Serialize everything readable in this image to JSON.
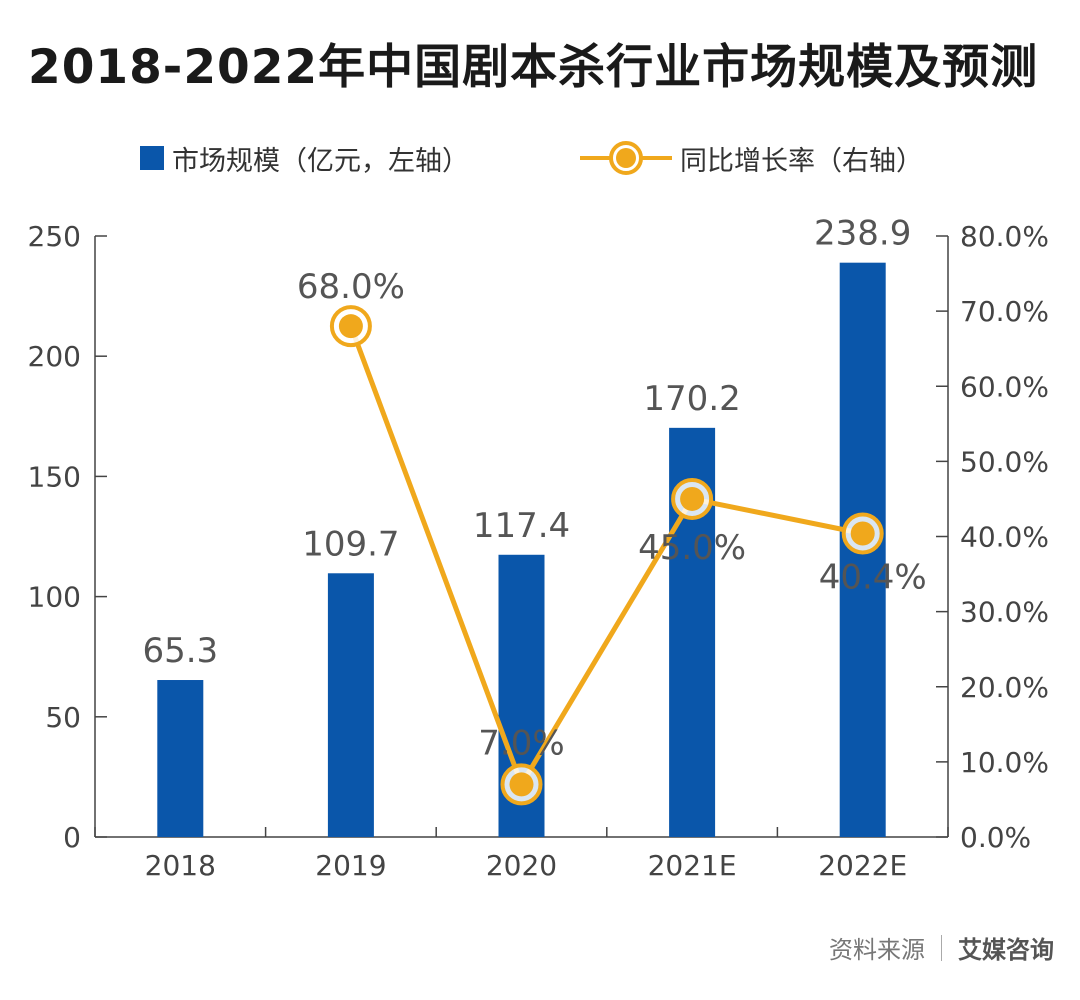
{
  "colors": {
    "bar": "#0a56aa",
    "line": "#f0a81c",
    "marker_fill": "#f0a81c",
    "marker_ring": "#f0a81c",
    "axis": "#444444"
  },
  "chart_data": {
    "type": "bar+line",
    "title": "2018-2022年中国剧本杀行业市场规模及预测",
    "categories": [
      "2018",
      "2019",
      "2020",
      "2021E",
      "2022E"
    ],
    "series": [
      {
        "name": "市场规模（亿元，左轴）",
        "type": "bar",
        "axis": "left",
        "values": [
          65.3,
          109.7,
          117.4,
          170.2,
          238.9
        ],
        "labels": [
          "65.3",
          "109.7",
          "117.4",
          "170.2",
          "238.9"
        ]
      },
      {
        "name": "同比增长率（右轴）",
        "type": "line",
        "axis": "right",
        "values": [
          null,
          68.0,
          7.0,
          45.0,
          40.4
        ],
        "labels": [
          null,
          "68.0%",
          "7.0%",
          "45.0%",
          "40.4%"
        ]
      }
    ],
    "y_left": {
      "min": 0,
      "max": 250,
      "ticks": [
        "0",
        "50",
        "100",
        "150",
        "200",
        "250"
      ]
    },
    "y_right": {
      "min": 0,
      "max": 80,
      "ticks": [
        "0.0%",
        "10.0%",
        "20.0%",
        "30.0%",
        "40.0%",
        "50.0%",
        "60.0%",
        "70.0%",
        "80.0%"
      ]
    },
    "legend_position": "top"
  },
  "source": {
    "label": "资料来源",
    "org": "艾媒咨询"
  }
}
